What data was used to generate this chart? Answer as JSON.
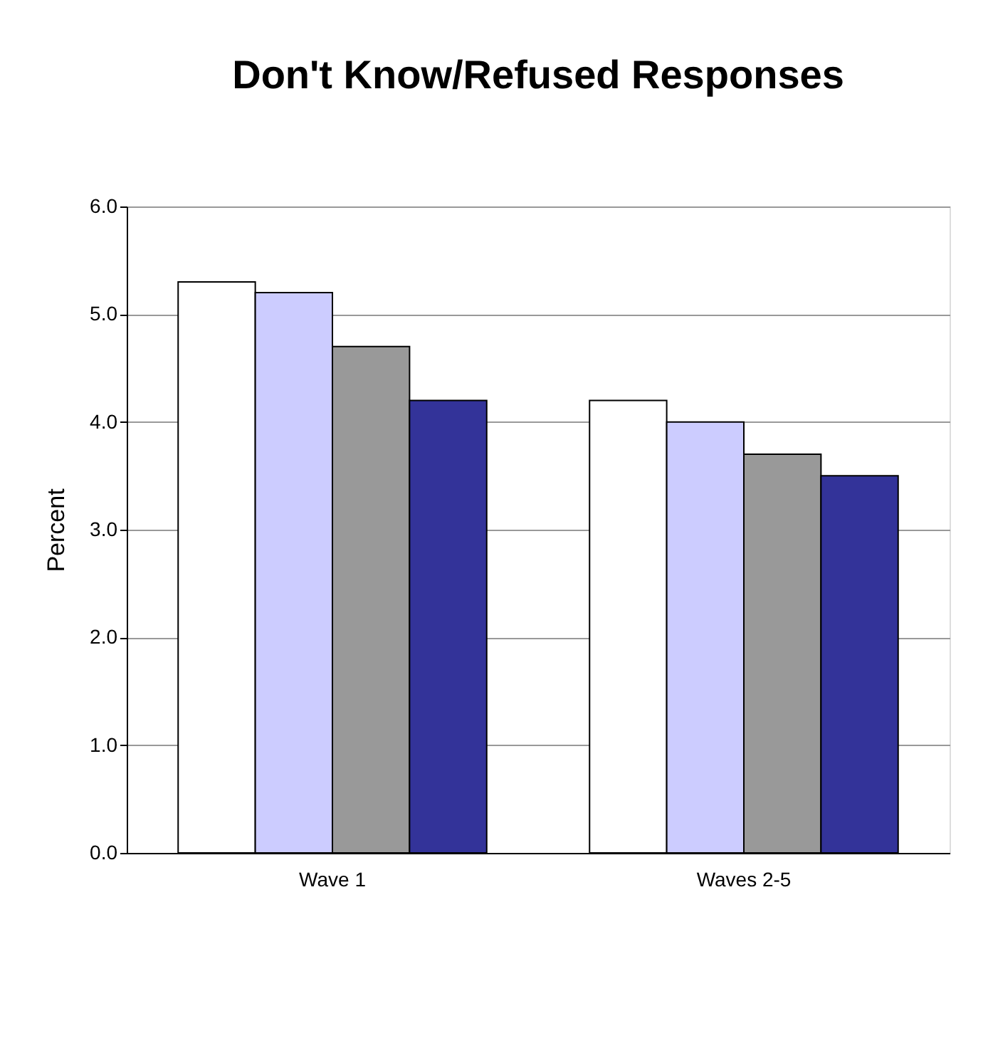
{
  "chart_data": {
    "type": "bar",
    "title": "Don't Know/Refused Responses",
    "ylabel": "Percent",
    "categories": [
      "Wave 1",
      "Waves 2-5"
    ],
    "series": [
      {
        "color": "#ffffff",
        "values": [
          5.3,
          4.2
        ]
      },
      {
        "color": "#ccccff",
        "values": [
          5.2,
          4.0
        ]
      },
      {
        "color": "#999999",
        "values": [
          4.7,
          3.7
        ]
      },
      {
        "color": "#333399",
        "values": [
          4.2,
          3.5
        ]
      }
    ],
    "ylim": [
      0,
      6
    ],
    "yticks": [
      {
        "value": 0,
        "label": "0.0"
      },
      {
        "value": 1,
        "label": "1.0"
      },
      {
        "value": 2,
        "label": "2.0"
      },
      {
        "value": 3,
        "label": "3.0"
      },
      {
        "value": 4,
        "label": "4.0"
      },
      {
        "value": 5,
        "label": "5.0"
      },
      {
        "value": 6,
        "label": "6.0"
      }
    ],
    "grid": "y",
    "legend": false
  }
}
